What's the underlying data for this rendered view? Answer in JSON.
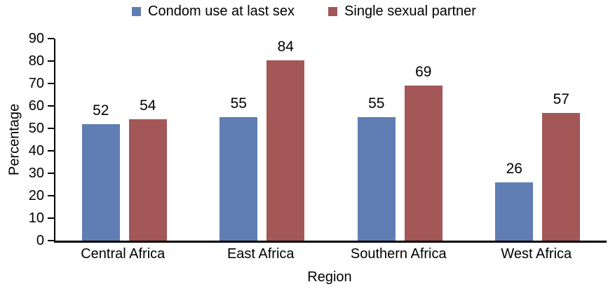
{
  "chart_data": {
    "type": "bar",
    "categories": [
      "Central Africa",
      "East Africa",
      "Southern Africa",
      "West Africa"
    ],
    "series": [
      {
        "name": "Condom use at last sex",
        "color": "#607db4",
        "values": [
          52,
          55,
          55,
          26
        ]
      },
      {
        "name": "Single sexual partner",
        "color": "#a35757",
        "values": [
          54,
          84,
          69,
          57
        ]
      }
    ],
    "title": "",
    "xlabel": "Region",
    "ylabel": "Percentage",
    "ylim": [
      0,
      90
    ],
    "yticks": [
      0,
      10,
      20,
      30,
      40,
      50,
      60,
      70,
      80,
      90
    ],
    "grid": false,
    "legend_position": "top",
    "bar_value_labels": true,
    "colors": {
      "axis": "#000000",
      "text": "#000000",
      "background": "#ffffff"
    }
  }
}
